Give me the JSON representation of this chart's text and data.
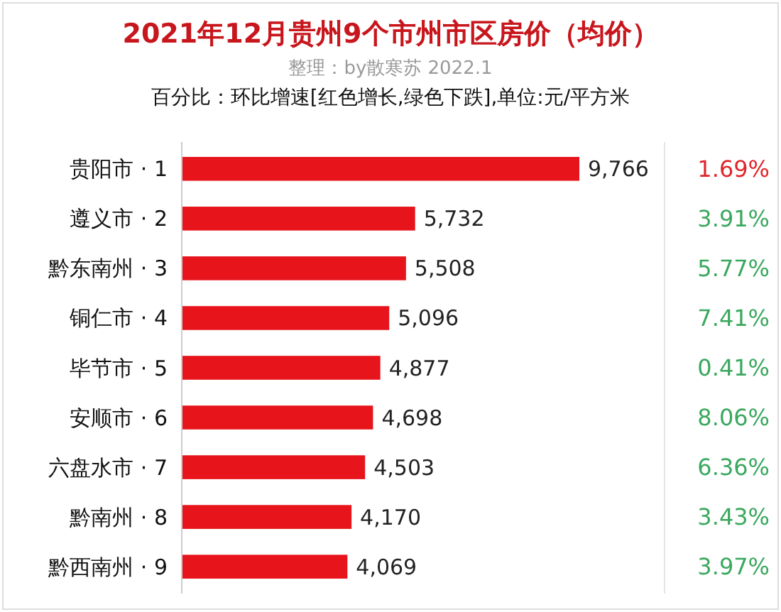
{
  "chart_data": {
    "type": "bar",
    "orientation": "horizontal",
    "title": "2021年12月贵州9个市州市区房价（均价）",
    "subtitle": "整理：by散寒苏 2022.1",
    "annotations": [
      "百分比：环比增速[红色增长,绿色下跌],单位:元/平方米",
      "1.69%",
      "3.91%",
      "5.77%",
      "7.41%",
      "0.41%",
      "8.06%",
      "6.36%",
      "3.43%",
      "3.97%"
    ],
    "categories": [
      "贵阳市 · 1",
      "遵义市 · 2",
      "黔东南州 · 3",
      "铜仁市 · 4",
      "毕节市 · 5",
      "安顺市 · 6",
      "六盘水市 · 7",
      "黔南州 · 8",
      "黔西南州 · 9"
    ],
    "values": [
      9766,
      5732,
      5508,
      5096,
      4877,
      4698,
      4503,
      4170,
      4069
    ],
    "value_labels": [
      "9,766",
      "5,732",
      "5,508",
      "5,096",
      "4,877",
      "4,698",
      "4,503",
      "4,170",
      "4,069"
    ],
    "color": "#e8141c",
    "tick_labels": "y"
  }
}
